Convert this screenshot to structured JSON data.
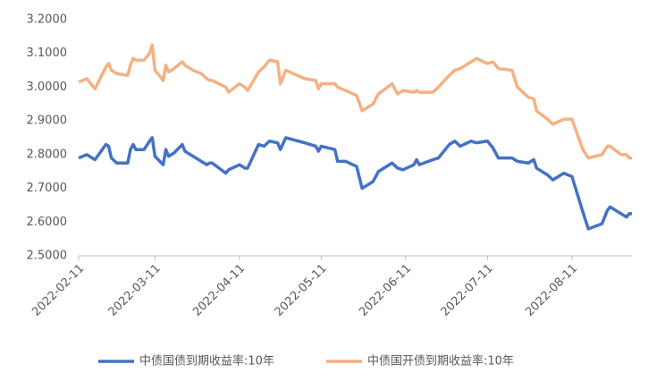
{
  "chart_data": {
    "type": "line",
    "x": [
      "2022-02-11",
      "2022-02-14",
      "2022-02-16",
      "2022-02-17",
      "2022-02-21",
      "2022-02-22",
      "2022-02-23",
      "2022-02-25",
      "2022-03-01",
      "2022-03-02",
      "2022-03-03",
      "2022-03-04",
      "2022-03-07",
      "2022-03-09",
      "2022-03-10",
      "2022-03-11",
      "2022-03-14",
      "2022-03-15",
      "2022-03-16",
      "2022-03-18",
      "2022-03-21",
      "2022-03-22",
      "2022-03-25",
      "2022-03-28",
      "2022-03-30",
      "2022-03-31",
      "2022-04-01",
      "2022-04-06",
      "2022-04-07",
      "2022-04-11",
      "2022-04-13",
      "2022-04-14",
      "2022-04-18",
      "2022-04-20",
      "2022-04-22",
      "2022-04-25",
      "2022-04-26",
      "2022-04-28",
      "2022-05-05",
      "2022-05-09",
      "2022-05-10",
      "2022-05-11",
      "2022-05-16",
      "2022-05-17",
      "2022-05-20",
      "2022-05-24",
      "2022-05-26",
      "2022-05-30",
      "2022-06-01",
      "2022-06-06",
      "2022-06-08",
      "2022-06-10",
      "2022-06-14",
      "2022-06-15",
      "2022-06-16",
      "2022-06-21",
      "2022-06-23",
      "2022-06-27",
      "2022-06-29",
      "2022-07-01",
      "2022-07-05",
      "2022-07-07",
      "2022-07-11",
      "2022-07-13",
      "2022-07-15",
      "2022-07-20",
      "2022-07-22",
      "2022-07-26",
      "2022-07-28",
      "2022-07-29",
      "2022-08-02",
      "2022-08-04",
      "2022-08-08",
      "2022-08-11",
      "2022-08-15",
      "2022-08-17",
      "2022-08-22",
      "2022-08-24",
      "2022-08-25",
      "2022-08-29",
      "2022-08-31",
      "2022-09-01",
      "2022-09-02"
    ],
    "series": [
      {
        "name": "中债国债到期收益率:10年",
        "color": "#4472c4",
        "values": [
          2.79,
          2.8,
          2.79,
          2.785,
          2.83,
          2.825,
          2.79,
          2.775,
          2.775,
          2.815,
          2.83,
          2.815,
          2.815,
          2.84,
          2.85,
          2.795,
          2.77,
          2.815,
          2.795,
          2.805,
          2.83,
          2.81,
          2.795,
          2.78,
          2.77,
          2.775,
          2.775,
          2.745,
          2.755,
          2.77,
          2.76,
          2.76,
          2.83,
          2.825,
          2.84,
          2.835,
          2.815,
          2.85,
          2.835,
          2.825,
          2.81,
          2.825,
          2.815,
          2.78,
          2.78,
          2.765,
          2.7,
          2.72,
          2.75,
          2.775,
          2.76,
          2.755,
          2.77,
          2.785,
          2.77,
          2.785,
          2.79,
          2.83,
          2.84,
          2.825,
          2.84,
          2.835,
          2.84,
          2.82,
          2.79,
          2.79,
          2.78,
          2.775,
          2.785,
          2.76,
          2.74,
          2.725,
          2.745,
          2.735,
          2.63,
          2.58,
          2.595,
          2.635,
          2.645,
          2.625,
          2.615,
          2.625,
          2.625
        ]
      },
      {
        "name": "中债国开债到期收益率:10年",
        "color": "#f4b183",
        "values": [
          3.015,
          3.025,
          3.005,
          2.995,
          3.06,
          3.07,
          3.05,
          3.04,
          3.035,
          3.065,
          3.085,
          3.08,
          3.08,
          3.1,
          3.125,
          3.05,
          3.02,
          3.065,
          3.045,
          3.055,
          3.075,
          3.065,
          3.05,
          3.04,
          3.025,
          3.02,
          3.02,
          3.0,
          2.985,
          3.01,
          3.0,
          2.99,
          3.045,
          3.06,
          3.08,
          3.075,
          3.01,
          3.05,
          3.025,
          3.02,
          2.995,
          3.01,
          3.01,
          3.0,
          2.99,
          2.975,
          2.93,
          2.95,
          2.98,
          3.01,
          2.98,
          2.99,
          2.985,
          2.99,
          2.985,
          2.985,
          3.0,
          3.035,
          3.05,
          3.055,
          3.075,
          3.085,
          3.07,
          3.075,
          3.055,
          3.05,
          3.0,
          2.97,
          2.965,
          2.93,
          2.905,
          2.89,
          2.905,
          2.905,
          2.815,
          2.79,
          2.8,
          2.825,
          2.825,
          2.8,
          2.8,
          2.79,
          2.79
        ]
      }
    ],
    "xlim": [
      "2022-02-11",
      "2022-09-02"
    ],
    "xticks": [
      "2022-02-11",
      "2022-03-11",
      "2022-04-11",
      "2022-05-11",
      "2022-06-11",
      "2022-07-11",
      "2022-08-11"
    ],
    "ylim": [
      2.5,
      3.2
    ],
    "yticks": [
      {
        "value": 2.5,
        "label": "2.5000"
      },
      {
        "value": 2.6,
        "label": "2.6000"
      },
      {
        "value": 2.7,
        "label": "2.7000"
      },
      {
        "value": 2.8,
        "label": "2.8000"
      },
      {
        "value": 2.9,
        "label": "2.9000"
      },
      {
        "value": 3.0,
        "label": "3.0000"
      },
      {
        "value": 3.1,
        "label": "3.1000"
      },
      {
        "value": 3.2,
        "label": "3.2000"
      }
    ],
    "grid": false,
    "legend": "bottom"
  }
}
